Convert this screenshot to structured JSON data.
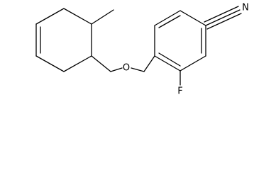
{
  "atoms": [
    {
      "label": "N"
    },
    {
      "label": "O"
    },
    {
      "label": "F"
    }
  ]
}
